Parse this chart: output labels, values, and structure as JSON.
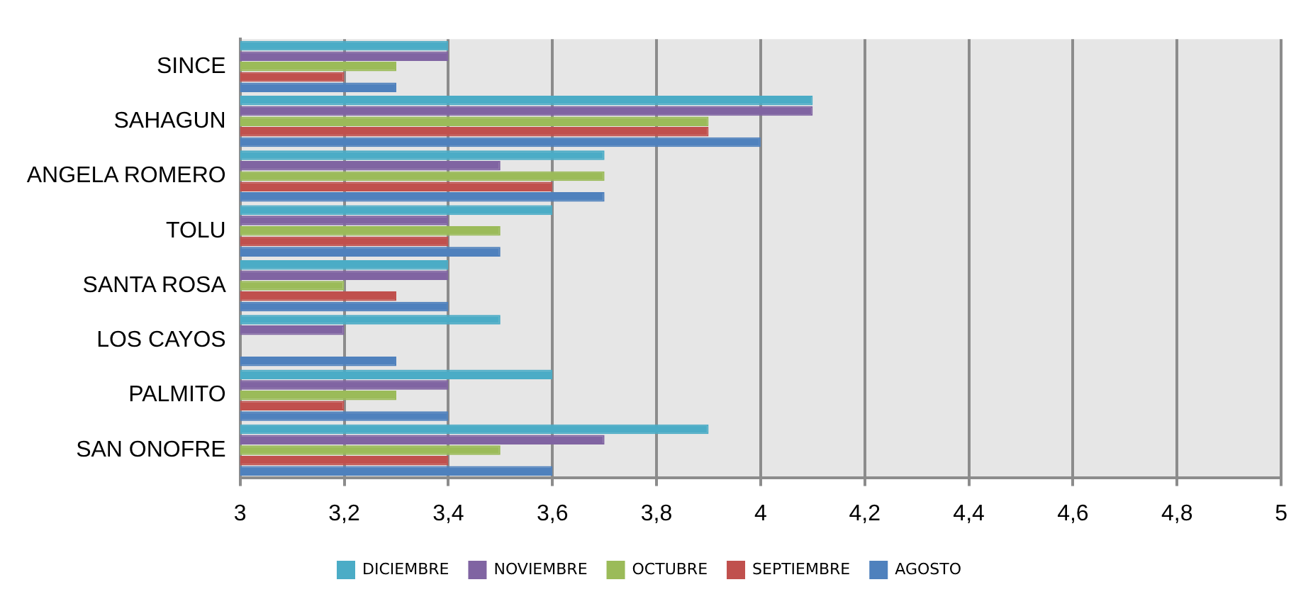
{
  "chart_data": {
    "type": "bar",
    "orientation": "horizontal",
    "categories": [
      "SINCE",
      "SAHAGUN",
      "ANGELA ROMERO",
      "TOLU",
      "SANTA ROSA",
      "LOS CAYOS",
      "PALMITO",
      "SAN ONOFRE"
    ],
    "series": [
      {
        "name": "DICIEMBRE",
        "color": "#4bacc6",
        "values": [
          3.4,
          4.1,
          3.7,
          3.6,
          3.4,
          3.5,
          3.6,
          3.9
        ]
      },
      {
        "name": "NOVIEMBRE",
        "color": "#8064a2",
        "values": [
          3.4,
          4.1,
          3.5,
          3.4,
          3.4,
          3.2,
          3.4,
          3.7
        ]
      },
      {
        "name": "OCTUBRE",
        "color": "#9bbb59",
        "values": [
          3.3,
          3.9,
          3.7,
          3.5,
          3.2,
          3.0,
          3.3,
          3.5
        ]
      },
      {
        "name": "SEPTIEMBRE",
        "color": "#c0504d",
        "values": [
          3.2,
          3.9,
          3.6,
          3.4,
          3.3,
          3.0,
          3.2,
          3.4
        ]
      },
      {
        "name": "AGOSTO",
        "color": "#4f81bd",
        "values": [
          3.3,
          4.0,
          3.7,
          3.5,
          3.4,
          3.3,
          3.4,
          3.6
        ]
      }
    ],
    "xlim": [
      3,
      5
    ],
    "xticks": [
      3,
      {
        "value": 3.2,
        "label": "3,2"
      },
      {
        "value": 3.4,
        "label": "3,4"
      },
      {
        "value": 3.6,
        "label": "3,6"
      },
      {
        "value": 3.8,
        "label": "3,8"
      },
      4,
      {
        "value": 4.2,
        "label": "4,2"
      },
      {
        "value": 4.4,
        "label": "4,4"
      },
      {
        "value": 4.6,
        "label": "4,6"
      },
      {
        "value": 4.8,
        "label": "4,8"
      },
      5
    ],
    "grid": "x",
    "legend": "bottom"
  }
}
